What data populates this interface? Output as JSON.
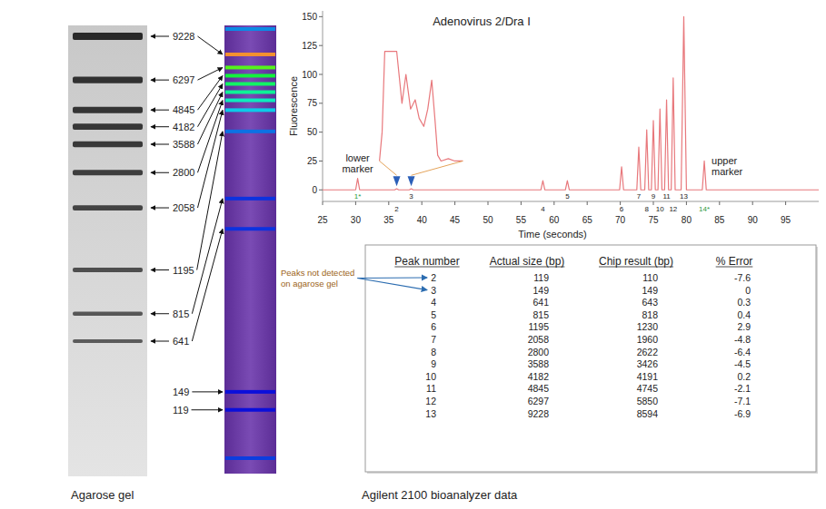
{
  "chart_data": {
    "type": "line",
    "title": "Adenovirus 2/Dra I",
    "x_label": "Time (seconds)",
    "y_label": "Fluorescence",
    "xlim": [
      25,
      100
    ],
    "xticks": [
      25,
      30,
      35,
      40,
      45,
      50,
      55,
      60,
      65,
      70,
      75,
      80,
      85,
      90,
      95
    ],
    "ylim": [
      -10,
      155
    ],
    "yticks": [
      0,
      25,
      50,
      75,
      100,
      125,
      150
    ],
    "grid": false,
    "series": [
      {
        "color": "#e8787c",
        "x": [
          25,
          30.0,
          30.3,
          30.6,
          35.9,
          36.2,
          36.5,
          38.1,
          38.4,
          38.7,
          58.0,
          58.3,
          58.6,
          61.7,
          62.0,
          62.3,
          69.9,
          70.2,
          70.5,
          72.5,
          72.8,
          73.1,
          73.7,
          74.0,
          74.3,
          74.7,
          75.0,
          75.3,
          75.7,
          76.0,
          76.3,
          76.7,
          77.0,
          77.3,
          77.7,
          78.0,
          78.3,
          79.2,
          79.6,
          80.0,
          82.4,
          82.7,
          83.0,
          100
        ],
        "values": [
          0,
          0,
          10,
          0,
          0,
          1,
          0,
          0,
          1,
          0,
          0,
          8,
          0,
          0,
          8,
          0,
          0,
          20,
          0,
          0,
          37,
          0,
          0,
          52,
          0,
          0,
          60,
          0,
          0,
          70,
          0,
          0,
          78,
          0,
          0,
          97,
          0,
          0,
          150,
          0,
          0,
          25,
          0,
          0
        ]
      },
      {
        "color": "#e8787c",
        "x": [
          33.6,
          34.0,
          34.4,
          36.2,
          37.0,
          37.6,
          38.3,
          39.0,
          39.6,
          40.3,
          40.9,
          41.5,
          42.0,
          42.4,
          42.9,
          44.0,
          45.0,
          46.2
        ],
        "values": [
          25,
          50,
          120,
          120,
          75,
          100,
          70,
          78,
          62,
          55,
          70,
          95,
          60,
          30,
          25,
          27,
          25,
          25
        ]
      }
    ],
    "peak_labels": [
      "1*",
      "2",
      "3",
      "4",
      "5",
      "6",
      "7",
      "8",
      "9",
      "10",
      "11",
      "12",
      "13",
      "14*"
    ],
    "peak_x": [
      30.3,
      36.2,
      38.4,
      58.3,
      62.0,
      70.2,
      72.8,
      74.0,
      75.0,
      76.0,
      77.0,
      78.0,
      79.6,
      82.7
    ],
    "annotations": [
      {
        "text": "lower marker",
        "x": 30.3,
        "y": 10
      },
      {
        "text": "upper marker",
        "x": 82.7,
        "y": 25
      }
    ],
    "inset_peaks": [
      "2",
      "3"
    ]
  },
  "gel": {
    "caption": "Agarose gel",
    "labels": [
      9228,
      6297,
      4845,
      4182,
      3588,
      2800,
      2058,
      1195,
      815,
      641,
      149,
      119
    ],
    "bands": [
      9228,
      6297,
      4845,
      4182,
      3588,
      2800,
      2058,
      1195,
      815,
      641
    ]
  },
  "bioanalyzer_caption": "Agilent 2100 bioanalyzer data",
  "table": {
    "columns": [
      "Peak number",
      "Actual size (bp)",
      "Chip result (bp)",
      "% Error"
    ],
    "rows": [
      [
        2,
        119,
        110,
        -7.6
      ],
      [
        3,
        149,
        149,
        0
      ],
      [
        4,
        641,
        643,
        0.3
      ],
      [
        5,
        815,
        818,
        0.4
      ],
      [
        6,
        1195,
        1230,
        2.9
      ],
      [
        7,
        2058,
        1960,
        -4.8
      ],
      [
        8,
        2800,
        2622,
        -6.4
      ],
      [
        9,
        3588,
        3426,
        -4.5
      ],
      [
        10,
        4182,
        4191,
        0.2
      ],
      [
        11,
        4845,
        4745,
        -2.1
      ],
      [
        12,
        6297,
        5850,
        -7.1
      ],
      [
        13,
        9228,
        8594,
        -6.9
      ]
    ],
    "annotation": "Peaks not detected on agarose gel"
  }
}
